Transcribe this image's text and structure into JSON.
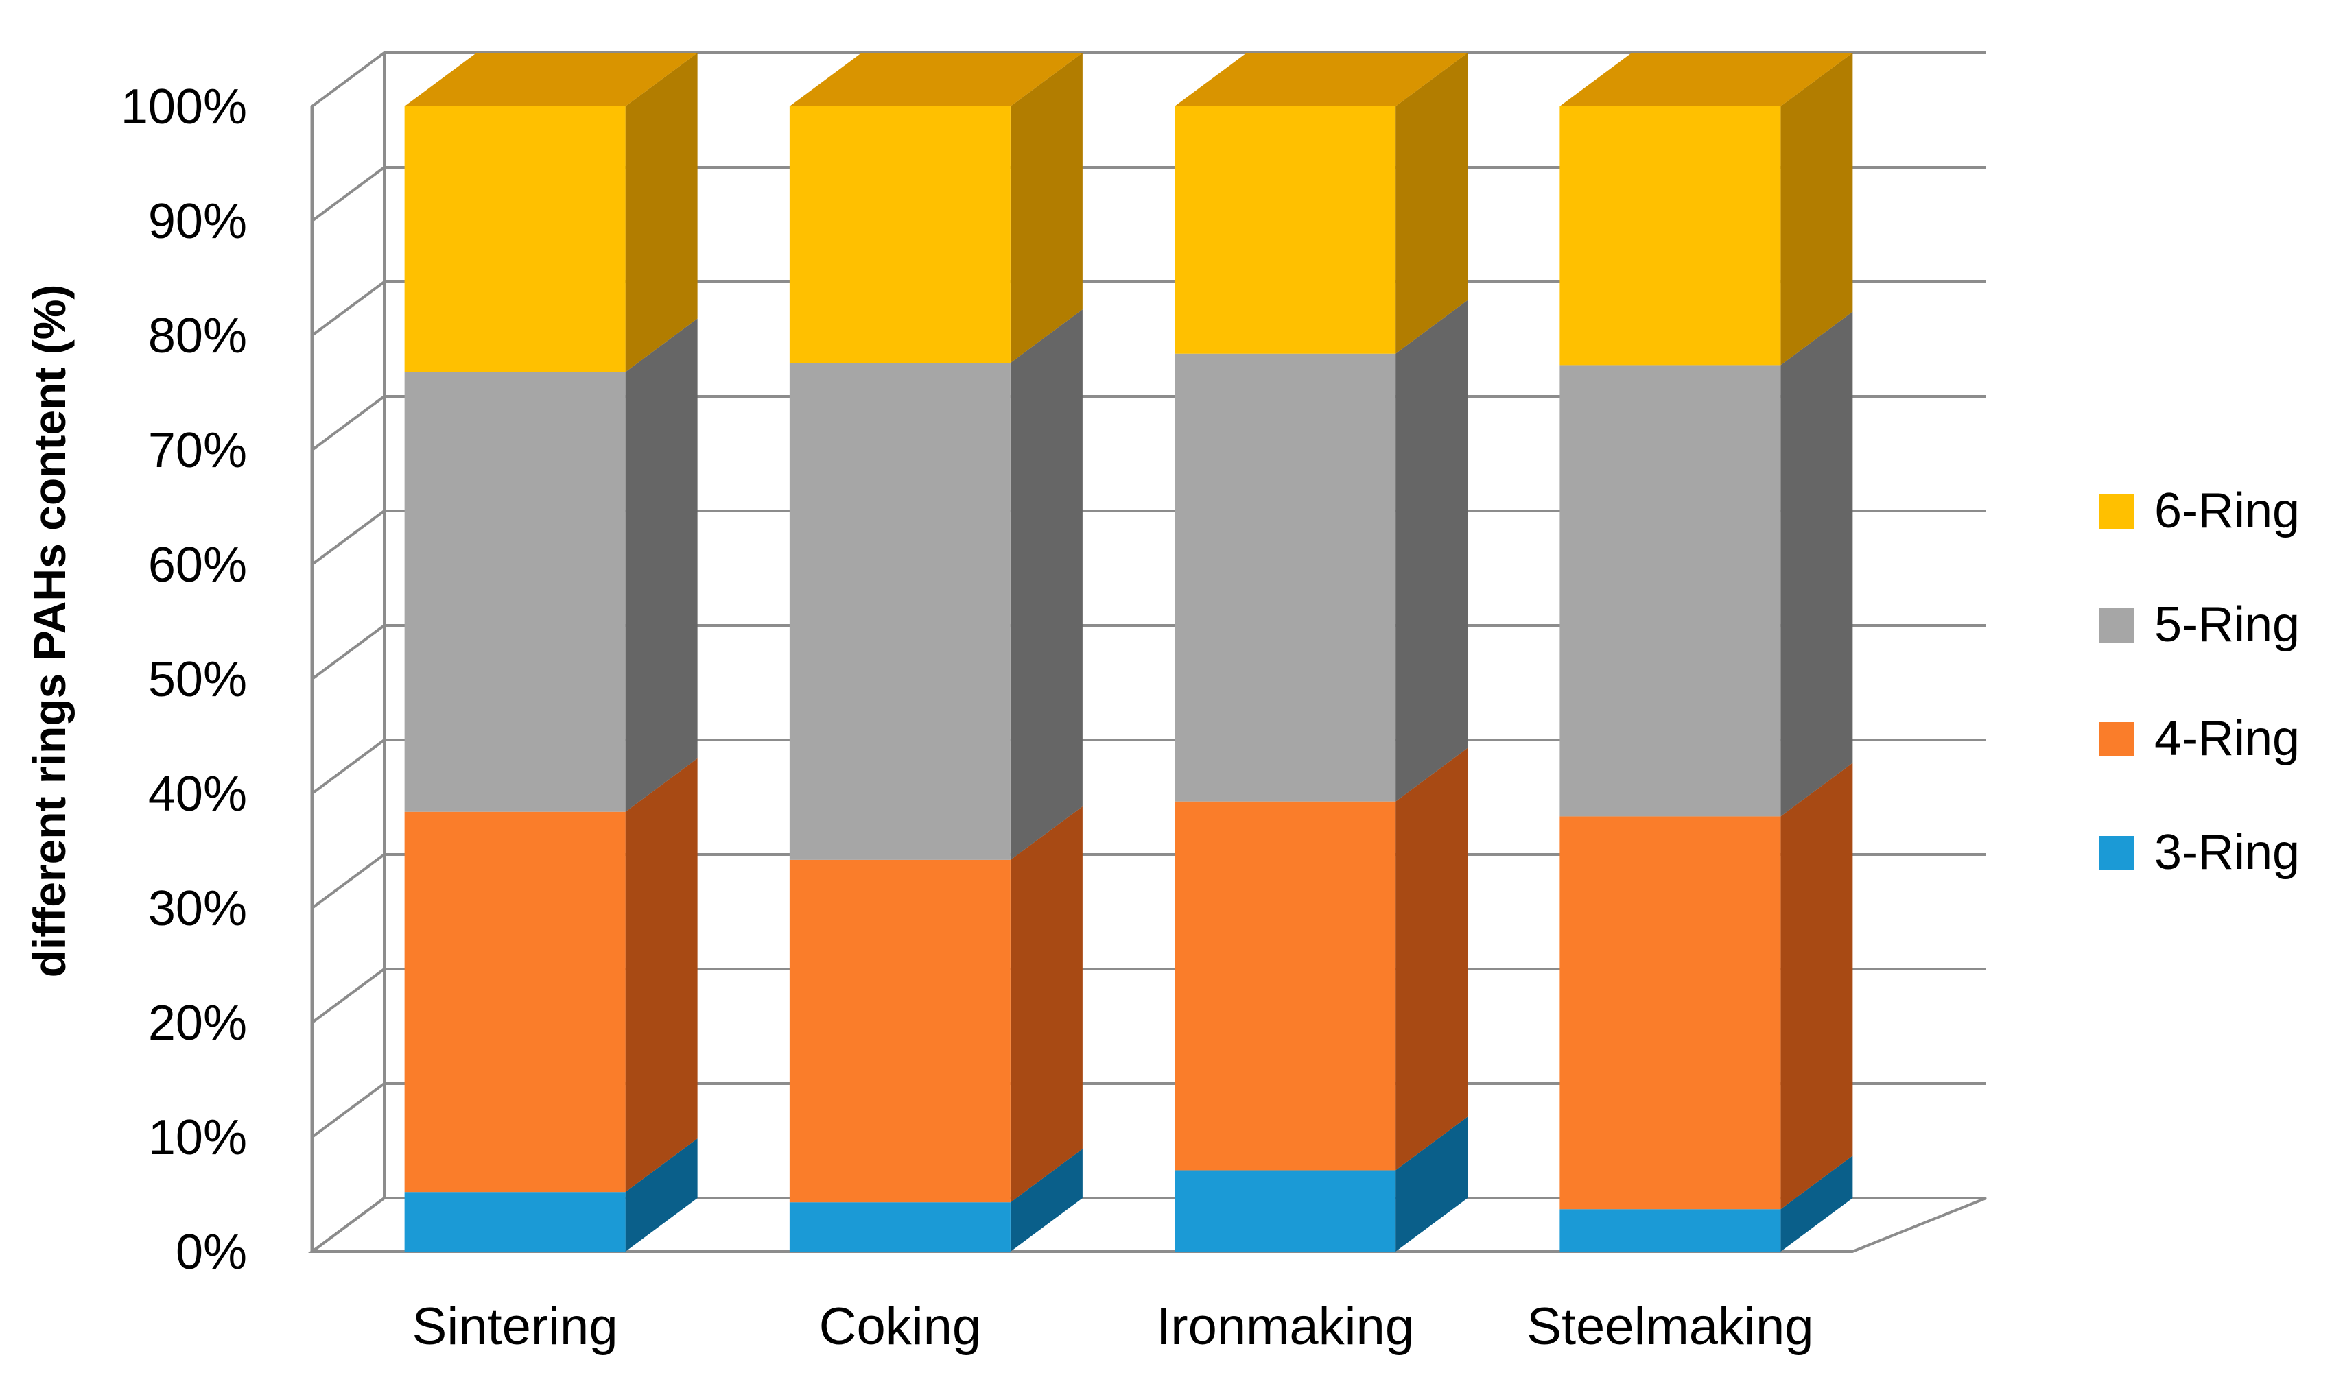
{
  "chart_data": {
    "type": "bar",
    "subtype": "stacked-100-percent-3d",
    "title": "",
    "xlabel": "",
    "ylabel": "different rings PAHs content (%)",
    "ylim": [
      0,
      100
    ],
    "yticks": [
      "0%",
      "10%",
      "20%",
      "30%",
      "40%",
      "50%",
      "60%",
      "70%",
      "80%",
      "90%",
      "100%"
    ],
    "grid": true,
    "legend_position": "right",
    "categories": [
      "Sintering",
      "Coking",
      "Ironmaking",
      "Steelmaking"
    ],
    "series": [
      {
        "name": "3-Ring",
        "color": "#1B9AD6",
        "side_color": "#0A5F8A",
        "values": [
          5.2,
          4.3,
          7.1,
          3.7
        ]
      },
      {
        "name": "4-Ring",
        "color": "#FA7D2A",
        "side_color": "#A84A14",
        "values": [
          33.2,
          29.9,
          32.2,
          34.3
        ]
      },
      {
        "name": "5-Ring",
        "color": "#A6A6A6",
        "side_color": "#666666",
        "values": [
          38.4,
          43.4,
          39.1,
          39.4
        ]
      },
      {
        "name": "6-Ring",
        "color": "#FFC000",
        "side_color": "#B27D00",
        "values": [
          23.2,
          22.4,
          21.6,
          22.6
        ]
      }
    ],
    "top_color": "#D99400",
    "grid_color": "#8C8C8C"
  }
}
